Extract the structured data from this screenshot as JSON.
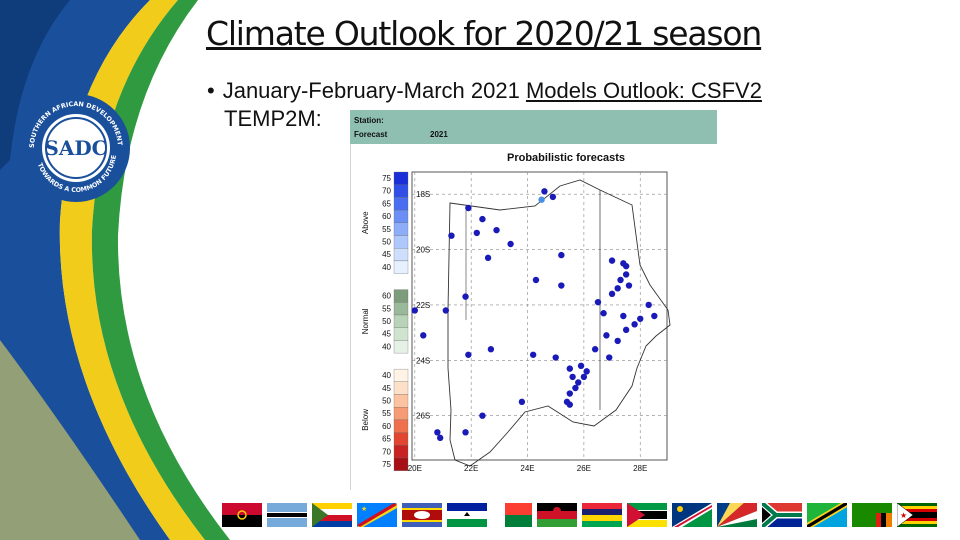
{
  "slide": {
    "title": "Climate Outlook for 2020/21 season",
    "bullet_prefix": "January-February-March 2021 ",
    "bullet_underlined": "Models Outlook: CSFV2",
    "bullet_line2": "TEMP2M:"
  },
  "logo": {
    "text": "SADC",
    "ring_top": "SOUTHERN AFRICAN DEVELOPMENT COMMUNITY",
    "ring_bottom": "TOWARDS A COMMON FUTURE"
  },
  "chart_header": {
    "station_label": "Station:",
    "forecast_label": "Forecast",
    "year": "2021",
    "title": "Probabilistic forecasts"
  },
  "legend": {
    "above": {
      "label": "Above",
      "ticks": [
        "75",
        "70",
        "65",
        "60",
        "55",
        "50",
        "45",
        "40"
      ],
      "colors": [
        "#1b2fd9",
        "#2f4fe6",
        "#4a6ef0",
        "#6b8ff5",
        "#8eadf8",
        "#afc8fb",
        "#cddffd",
        "#e7f0ff"
      ]
    },
    "normal": {
      "label": "Normal",
      "ticks": [
        "60",
        "55",
        "50",
        "45",
        "40"
      ],
      "colors": [
        "#7c9c7c",
        "#9ab99a",
        "#b8d3b8",
        "#cfe4cf",
        "#e4f1e4"
      ]
    },
    "below": {
      "label": "Below",
      "ticks": [
        "40",
        "45",
        "50",
        "55",
        "60",
        "65",
        "70",
        "75"
      ],
      "colors": [
        "#fff3e6",
        "#fde0c8",
        "#fbc3a0",
        "#f69c74",
        "#ef704c",
        "#e04632",
        "#c82222",
        "#a50f15"
      ]
    }
  },
  "chart_data": {
    "type": "scatter",
    "title": "Probabilistic forecasts",
    "xlim": [
      19.9,
      28.95
    ],
    "ylim": [
      -27.6,
      -17.2
    ],
    "x_ticks": [
      "20E",
      "22E",
      "24E",
      "26E",
      "28E"
    ],
    "x_tick_values": [
      20,
      22,
      24,
      26,
      28
    ],
    "y_ticks": [
      "18S",
      "20S",
      "22S",
      "24S",
      "26S"
    ],
    "y_tick_values": [
      -18,
      -20,
      -22,
      -24,
      -26
    ],
    "series": [
      {
        "category": "above",
        "points": [
          [
            21.9,
            -18.5
          ],
          [
            22.4,
            -18.9
          ],
          [
            22.9,
            -19.3
          ],
          [
            21.3,
            -19.5
          ],
          [
            22.2,
            -19.4
          ],
          [
            24.6,
            -17.9
          ],
          [
            24.9,
            -18.1
          ],
          [
            23.4,
            -19.8
          ],
          [
            22.6,
            -20.3
          ],
          [
            25.2,
            -20.2
          ],
          [
            27.0,
            -20.4
          ],
          [
            27.4,
            -20.5
          ],
          [
            27.5,
            -20.6
          ],
          [
            27.5,
            -20.9
          ],
          [
            27.3,
            -21.1
          ],
          [
            27.2,
            -21.4
          ],
          [
            27.6,
            -21.3
          ],
          [
            24.3,
            -21.1
          ],
          [
            25.2,
            -21.3
          ],
          [
            21.8,
            -21.7
          ],
          [
            27.0,
            -21.6
          ],
          [
            26.5,
            -21.9
          ],
          [
            28.3,
            -22.0
          ],
          [
            20.0,
            -22.2
          ],
          [
            21.1,
            -22.2
          ],
          [
            26.7,
            -22.3
          ],
          [
            27.4,
            -22.4
          ],
          [
            28.0,
            -22.5
          ],
          [
            28.5,
            -22.4
          ],
          [
            27.8,
            -22.7
          ],
          [
            27.5,
            -22.9
          ],
          [
            20.3,
            -23.1
          ],
          [
            26.8,
            -23.1
          ],
          [
            27.2,
            -23.3
          ],
          [
            22.7,
            -23.6
          ],
          [
            26.4,
            -23.6
          ],
          [
            21.9,
            -23.8
          ],
          [
            24.2,
            -23.8
          ],
          [
            25.0,
            -23.9
          ],
          [
            26.9,
            -23.9
          ],
          [
            25.9,
            -24.2
          ],
          [
            25.5,
            -24.3
          ],
          [
            26.1,
            -24.4
          ],
          [
            25.6,
            -24.6
          ],
          [
            26.0,
            -24.6
          ],
          [
            25.8,
            -24.8
          ],
          [
            25.7,
            -25.0
          ],
          [
            25.5,
            -25.2
          ],
          [
            23.8,
            -25.5
          ],
          [
            25.4,
            -25.5
          ],
          [
            25.5,
            -25.6
          ],
          [
            22.4,
            -26.0
          ],
          [
            20.8,
            -26.6
          ],
          [
            20.9,
            -26.8
          ],
          [
            21.8,
            -26.6
          ]
        ]
      },
      {
        "category": "above-weak",
        "points": [
          [
            24.5,
            -18.2
          ]
        ]
      }
    ],
    "grid": true,
    "legend_placement": "left"
  },
  "flags": [
    "angola",
    "botswana",
    "comoros",
    "dr-congo",
    "eswatini",
    "lesotho",
    "madagascar",
    "malawi",
    "mauritius",
    "mozambique",
    "namibia",
    "seychelles",
    "south-africa",
    "tanzania",
    "zambia",
    "zimbabwe"
  ],
  "colors": {
    "header_bar": "#8fbfb1",
    "point": "#1a1ab8",
    "point_weak": "#4a90e2"
  }
}
